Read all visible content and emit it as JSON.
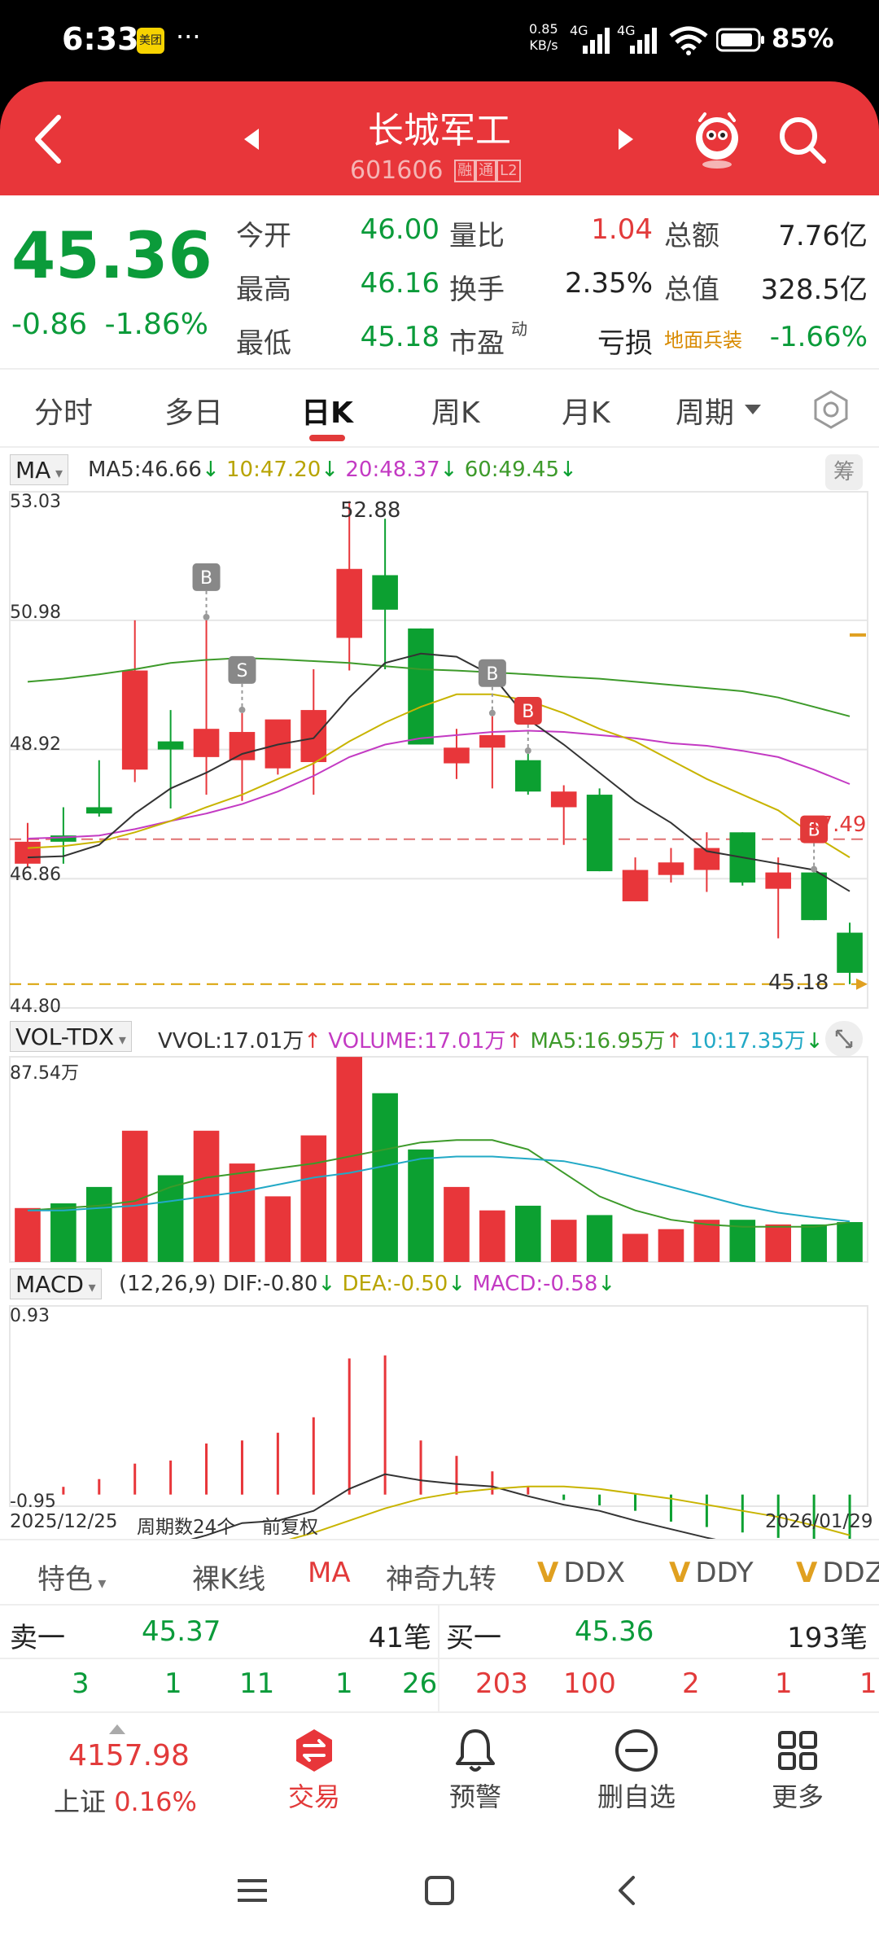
{
  "status_bar": {
    "time": "6:33",
    "app_badge": "美团",
    "more": "···",
    "net_speed_value": "0.85",
    "net_speed_unit": "KB/s",
    "signal1": "4G",
    "signal2": "4G",
    "battery": "85%"
  },
  "header": {
    "title": "长城军工",
    "code": "601606",
    "tags": [
      "融",
      "通",
      "L2"
    ]
  },
  "quote": {
    "price": "45.36",
    "change": "-0.86",
    "change_pct": "-1.86%",
    "rows": [
      {
        "l1": "今开",
        "v1": "46.00",
        "l2": "量比",
        "v2": "1.04",
        "l3": "总额",
        "v3": "7.76亿"
      },
      {
        "l1": "最高",
        "v1": "46.16",
        "l2": "换手",
        "v2": "2.35%",
        "l3": "总值",
        "v3": "328.5亿"
      },
      {
        "l1": "最低",
        "v1": "45.18",
        "l2": "市盈",
        "v2": "亏损",
        "l3": "地面兵装",
        "v3": "-1.66%"
      }
    ],
    "pe_sup": "动"
  },
  "tabs": [
    "分时",
    "多日",
    "日K",
    "周K",
    "月K",
    "周期"
  ],
  "active_tab": "日K",
  "ma_legend": {
    "btn": "MA",
    "ma5": "MA5:46.66",
    "ma10": "10:47.20",
    "ma20": "20:48.37",
    "ma60": "60:49.45",
    "chou": "筹"
  },
  "vol_legend": {
    "btn": "VOL-TDX",
    "vvol": "VVOL:17.01万",
    "volume": "VOLUME:17.01万",
    "ma5": "MA5:16.95万",
    "ma10": "10:17.35万"
  },
  "macd_legend": {
    "btn": "MACD",
    "params": "(12,26,9)",
    "dif": "DIF:-0.80",
    "dea": "DEA:-0.50",
    "macd": "MACD:-0.58"
  },
  "colors": {
    "up": "#e8363a",
    "down": "#0ca031",
    "ma5": "#333333",
    "ma10": "#c8b400",
    "ma20": "#c33ac3",
    "ma60": "#3d9a2a",
    "vol_ma10": "#22a9c6"
  },
  "chart_data": [
    {
      "type": "candlestick",
      "price_axis": [
        "53.03",
        "50.98",
        "48.92",
        "46.86",
        "44.80"
      ],
      "ylim": [
        44.8,
        53.03
      ],
      "high_label": "52.88",
      "low_label": "45.18",
      "ref_line_label": "47.49",
      "ref_line": 47.49,
      "low_line": 45.18,
      "candles": [
        {
          "o": 47.1,
          "c": 47.45,
          "h": 47.75,
          "l": 47.05
        },
        {
          "o": 47.55,
          "c": 47.45,
          "h": 48.0,
          "l": 47.1
        },
        {
          "o": 48.0,
          "c": 47.9,
          "h": 48.75,
          "l": 47.85
        },
        {
          "o": 48.6,
          "c": 50.18,
          "h": 50.98,
          "l": 48.4
        },
        {
          "o": 49.05,
          "c": 48.92,
          "h": 49.55,
          "l": 47.98
        },
        {
          "o": 48.8,
          "c": 49.25,
          "h": 50.98,
          "l": 48.2
        },
        {
          "o": 48.75,
          "c": 49.2,
          "h": 49.5,
          "l": 48.1
        },
        {
          "o": 48.62,
          "c": 49.4,
          "h": 49.38,
          "l": 48.52
        },
        {
          "o": 48.72,
          "c": 49.55,
          "h": 50.2,
          "l": 48.2
        },
        {
          "o": 50.7,
          "c": 51.8,
          "h": 52.88,
          "l": 50.18
        },
        {
          "o": 51.7,
          "c": 51.15,
          "h": 52.6,
          "l": 50.2
        },
        {
          "o": 50.85,
          "c": 49.0,
          "h": 50.85,
          "l": 49.0
        },
        {
          "o": 48.7,
          "c": 48.95,
          "h": 49.25,
          "l": 48.45
        },
        {
          "o": 48.95,
          "c": 49.15,
          "h": 49.45,
          "l": 48.3
        },
        {
          "o": 48.75,
          "c": 48.25,
          "h": 48.85,
          "l": 48.2
        },
        {
          "o": 48.0,
          "c": 48.25,
          "h": 48.35,
          "l": 47.4
        },
        {
          "o": 48.2,
          "c": 46.98,
          "h": 48.3,
          "l": 46.98
        },
        {
          "o": 46.5,
          "c": 47.0,
          "h": 47.2,
          "l": 46.5
        },
        {
          "o": 46.92,
          "c": 47.12,
          "h": 47.35,
          "l": 46.8
        },
        {
          "o": 47.0,
          "c": 47.35,
          "h": 47.6,
          "l": 46.65
        },
        {
          "o": 47.6,
          "c": 46.8,
          "h": 47.6,
          "l": 46.75
        },
        {
          "o": 46.7,
          "c": 46.96,
          "h": 47.2,
          "l": 45.91
        },
        {
          "o": 46.96,
          "c": 46.2,
          "h": 46.96,
          "l": 46.2
        },
        {
          "o": 46.0,
          "c": 45.36,
          "h": 46.16,
          "l": 45.18
        }
      ],
      "ma5": [
        47.2,
        47.22,
        47.4,
        47.9,
        48.3,
        48.55,
        48.85,
        49.0,
        49.1,
        49.75,
        50.3,
        50.45,
        50.4,
        50.1,
        49.4,
        49.0,
        48.55,
        48.1,
        47.75,
        47.3,
        47.2,
        47.1,
        47.0,
        46.66
      ],
      "ma10": [
        47.35,
        47.38,
        47.45,
        47.6,
        47.78,
        48.0,
        48.2,
        48.45,
        48.7,
        49.05,
        49.35,
        49.6,
        49.8,
        49.8,
        49.7,
        49.5,
        49.25,
        49.05,
        48.75,
        48.45,
        48.2,
        47.95,
        47.55,
        47.2
      ],
      "ma20": [
        47.5,
        47.52,
        47.55,
        47.65,
        47.78,
        47.9,
        48.05,
        48.25,
        48.5,
        48.8,
        49.0,
        49.1,
        49.15,
        49.2,
        49.22,
        49.2,
        49.15,
        49.1,
        49.02,
        48.98,
        48.9,
        48.8,
        48.6,
        48.37
      ],
      "ma60": [
        50.0,
        50.05,
        50.12,
        50.2,
        50.3,
        50.35,
        50.38,
        50.36,
        50.33,
        50.3,
        50.25,
        50.2,
        50.18,
        50.15,
        50.12,
        50.08,
        50.05,
        50.0,
        49.95,
        49.9,
        49.85,
        49.75,
        49.6,
        49.45
      ],
      "signals": [
        {
          "i": 5,
          "label": "B"
        },
        {
          "i": 6,
          "label": "S"
        },
        {
          "i": 13,
          "label": "B"
        },
        {
          "i": 14,
          "label": "B"
        },
        {
          "i": 22,
          "label": "B"
        }
      ]
    },
    {
      "type": "bar",
      "series_name": "VOLUME",
      "max_label": "87.54万",
      "ylim": [
        0,
        87.54
      ],
      "values": [
        23,
        25,
        32,
        56,
        37,
        56,
        42,
        28,
        54,
        87.5,
        72,
        48,
        32,
        22,
        24,
        18,
        20,
        12,
        14,
        18,
        18,
        16,
        16,
        17.01
      ],
      "ma5": [
        22,
        23,
        24,
        26,
        32,
        36,
        38,
        40,
        42,
        45,
        48,
        51,
        52,
        52,
        48,
        38,
        28,
        22,
        18,
        16,
        15,
        15,
        15,
        16.95
      ],
      "ma10": [
        22,
        22,
        23,
        24,
        26,
        28,
        30,
        33,
        36,
        38,
        41,
        44,
        45,
        45,
        44,
        43,
        40,
        36,
        32,
        28,
        24,
        21,
        19,
        17.35
      ]
    },
    {
      "type": "bar",
      "series_name": "MACD",
      "ylim": [
        -0.95,
        0.93
      ],
      "max_label": "0.93",
      "min_label": "-0.95",
      "hist": [
        0.0,
        0.05,
        0.1,
        0.2,
        0.22,
        0.33,
        0.35,
        0.4,
        0.5,
        0.88,
        0.9,
        0.35,
        0.25,
        0.15,
        0.05,
        -0.05,
        -0.1,
        -0.15,
        -0.25,
        -0.3,
        -0.35,
        -0.4,
        -0.5,
        -0.58
      ],
      "dif": [
        -0.95,
        -0.9,
        -0.8,
        -0.6,
        -0.58,
        -0.5,
        -0.4,
        -0.38,
        -0.3,
        -0.12,
        0.0,
        -0.05,
        -0.08,
        -0.1,
        -0.18,
        -0.25,
        -0.3,
        -0.38,
        -0.45,
        -0.52,
        -0.58,
        -0.62,
        -0.7,
        -0.8
      ],
      "dea": [
        -0.95,
        -0.92,
        -0.88,
        -0.82,
        -0.76,
        -0.7,
        -0.63,
        -0.56,
        -0.48,
        -0.38,
        -0.28,
        -0.2,
        -0.15,
        -0.12,
        -0.1,
        -0.1,
        -0.12,
        -0.16,
        -0.2,
        -0.25,
        -0.3,
        -0.35,
        -0.42,
        -0.5
      ],
      "x_start": "2025/12/25",
      "x_end": "2026/01/29",
      "period_count": "周期数24个",
      "adjust": "前复权"
    }
  ],
  "indicators": [
    {
      "label": "特色",
      "prefix": ""
    },
    {
      "label": "裸K线",
      "prefix": ""
    },
    {
      "label": "MA",
      "prefix": ""
    },
    {
      "label": "神奇九转",
      "prefix": ""
    },
    {
      "label": "DDX",
      "prefix": "V"
    },
    {
      "label": "DDY",
      "prefix": "V"
    },
    {
      "label": "DDZ",
      "prefix": "V"
    }
  ],
  "order_book": {
    "sell_label": "卖一",
    "sell_price": "45.37",
    "sell_count": "41笔",
    "buy_label": "买一",
    "buy_price": "45.36",
    "buy_count": "193笔",
    "sell_split": [
      "3",
      "1",
      "11",
      "1",
      "26"
    ],
    "buy_split": [
      "203",
      "100",
      "2",
      "1",
      "1"
    ]
  },
  "bottom_nav": {
    "index_value": "4157.98",
    "index_name": "上证",
    "index_pct": "0.16%",
    "items": [
      "交易",
      "预警",
      "删自选",
      "更多"
    ]
  }
}
